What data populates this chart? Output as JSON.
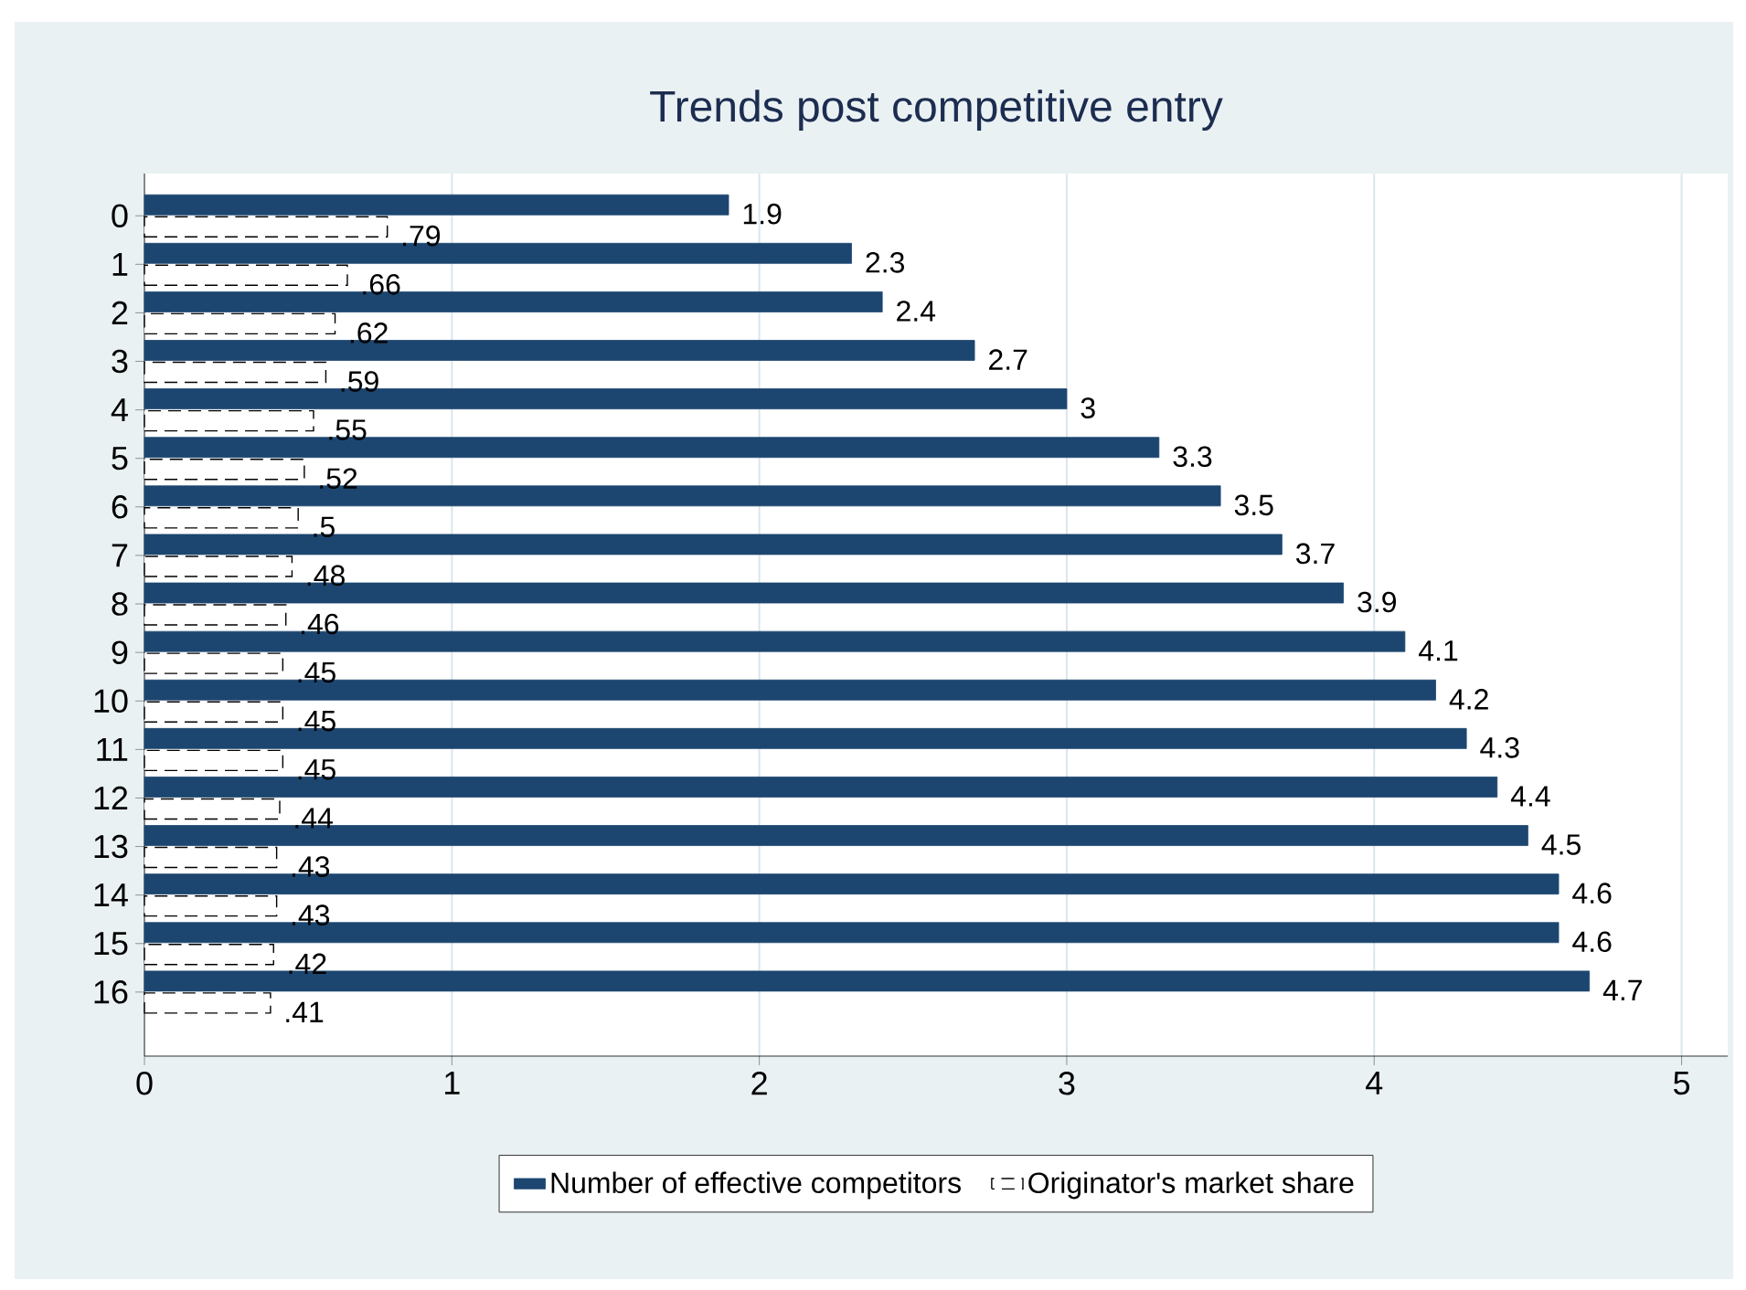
{
  "chart_data": {
    "type": "bar",
    "orientation": "horizontal",
    "title": "Trends post competitive entry",
    "categories": [
      "0",
      "1",
      "2",
      "3",
      "4",
      "5",
      "6",
      "7",
      "8",
      "9",
      "10",
      "11",
      "12",
      "13",
      "14",
      "15",
      "16"
    ],
    "series": [
      {
        "name": "Number of effective competitors",
        "color": "#1c4670",
        "values": [
          1.9,
          2.3,
          2.4,
          2.7,
          3,
          3.3,
          3.5,
          3.7,
          3.9,
          4.1,
          4.2,
          4.3,
          4.4,
          4.5,
          4.6,
          4.6,
          4.7
        ],
        "value_labels": [
          "1.9",
          "2.3",
          "2.4",
          "2.7",
          "3",
          "3.3",
          "3.5",
          "3.7",
          "3.9",
          "4.1",
          "4.2",
          "4.3",
          "4.4",
          "4.5",
          "4.6",
          "4.6",
          "4.7"
        ]
      },
      {
        "name": "Originator's market share",
        "color": "#ffffff",
        "line_style": "dashed",
        "values": [
          0.79,
          0.66,
          0.62,
          0.59,
          0.55,
          0.52,
          0.5,
          0.48,
          0.46,
          0.45,
          0.45,
          0.45,
          0.44,
          0.43,
          0.43,
          0.42,
          0.41
        ],
        "value_labels": [
          ".79",
          ".66",
          ".62",
          ".59",
          ".55",
          ".52",
          ".5",
          ".48",
          ".46",
          ".45",
          ".45",
          ".45",
          ".44",
          ".43",
          ".43",
          ".42",
          ".41"
        ]
      }
    ],
    "xlim": [
      0,
      5.15
    ],
    "xticks": [
      0,
      1,
      2,
      3,
      4,
      5
    ],
    "grid": "x",
    "legend": "bottom"
  }
}
